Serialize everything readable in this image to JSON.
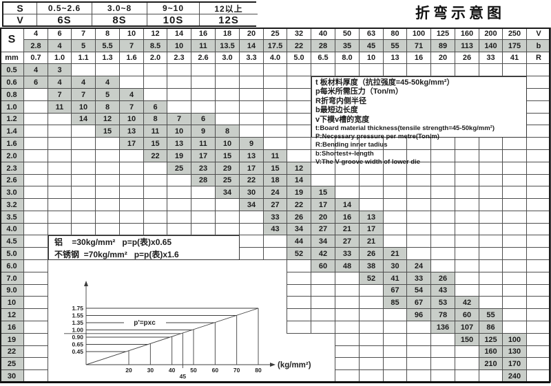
{
  "title": "折弯示意图",
  "colors": {
    "shade": "#c9cec9",
    "grid_line": "#4c4c4c",
    "page_bg": "#ffffff"
  },
  "selector_table": {
    "s_label": "S",
    "v_label": "V",
    "s_ranges": [
      "0.5~2.6",
      "3.0~8",
      "9~10",
      "12以上"
    ],
    "v_values": [
      "6S",
      "8S",
      "10S",
      "12S"
    ]
  },
  "main_table": {
    "corner_label": "S",
    "unit_label": "mm",
    "right_labels": [
      "V",
      "b",
      "R"
    ],
    "v_row": [
      "4",
      "6",
      "7",
      "8",
      "10",
      "12",
      "14",
      "16",
      "18",
      "20",
      "25",
      "32",
      "40",
      "50",
      "63",
      "80",
      "100",
      "125",
      "160",
      "200",
      "250"
    ],
    "b_row": [
      "2.8",
      "4",
      "5",
      "5.5",
      "7",
      "8.5",
      "10",
      "11",
      "13.5",
      "14",
      "17.5",
      "22",
      "28",
      "35",
      "45",
      "55",
      "71",
      "89",
      "113",
      "140",
      "175"
    ],
    "r_row": [
      "0.7",
      "1.0",
      "1.1",
      "1.3",
      "1.6",
      "2.0",
      "2.3",
      "2.6",
      "3.0",
      "3.3",
      "4.0",
      "5.0",
      "6.5",
      "8.0",
      "10",
      "13",
      "16",
      "20",
      "26",
      "33",
      "41"
    ],
    "rows": [
      {
        "s": "0.5",
        "start": 0,
        "v": [
          "4",
          "3"
        ]
      },
      {
        "s": "0.6",
        "start": 0,
        "v": [
          "6",
          "4",
          "4",
          "4"
        ]
      },
      {
        "s": "0.8",
        "start": 1,
        "v": [
          "7",
          "7",
          "5",
          "4"
        ]
      },
      {
        "s": "1.0",
        "start": 1,
        "v": [
          "11",
          "10",
          "8",
          "7",
          "6"
        ]
      },
      {
        "s": "1.2",
        "start": 2,
        "v": [
          "14",
          "12",
          "10",
          "8",
          "7",
          "6"
        ]
      },
      {
        "s": "1.4",
        "start": 3,
        "v": [
          "15",
          "13",
          "11",
          "10",
          "9",
          "8"
        ]
      },
      {
        "s": "1.6",
        "start": 4,
        "v": [
          "17",
          "15",
          "13",
          "11",
          "10",
          "9"
        ]
      },
      {
        "s": "2.0",
        "start": 5,
        "v": [
          "22",
          "19",
          "17",
          "15",
          "13",
          "11"
        ]
      },
      {
        "s": "2.3",
        "start": 6,
        "v": [
          "25",
          "23",
          "29",
          "17",
          "15",
          "12"
        ]
      },
      {
        "s": "2.6",
        "start": 7,
        "v": [
          "28",
          "25",
          "22",
          "18",
          "14"
        ]
      },
      {
        "s": "3.0",
        "start": 8,
        "v": [
          "34",
          "30",
          "24",
          "19",
          "15"
        ]
      },
      {
        "s": "3.2",
        "start": 9,
        "v": [
          "34",
          "27",
          "22",
          "17",
          "14"
        ]
      },
      {
        "s": "3.5",
        "start": 10,
        "v": [
          "33",
          "26",
          "20",
          "16",
          "13"
        ]
      },
      {
        "s": "4.0",
        "start": 10,
        "v": [
          "43",
          "34",
          "27",
          "21",
          "17"
        ]
      },
      {
        "s": "4.5",
        "start": 11,
        "v": [
          "44",
          "34",
          "27",
          "21"
        ]
      },
      {
        "s": "5.0",
        "start": 11,
        "v": [
          "52",
          "42",
          "33",
          "26",
          "21"
        ]
      },
      {
        "s": "6.0",
        "start": 12,
        "v": [
          "60",
          "48",
          "38",
          "30",
          "24"
        ]
      },
      {
        "s": "7.0",
        "start": 14,
        "v": [
          "52",
          "41",
          "33",
          "26"
        ]
      },
      {
        "s": "9.0",
        "start": 15,
        "v": [
          "67",
          "54",
          "43"
        ]
      },
      {
        "s": "10",
        "start": 15,
        "v": [
          "85",
          "67",
          "53",
          "42"
        ]
      },
      {
        "s": "12",
        "start": 16,
        "v": [
          "96",
          "78",
          "60",
          "55"
        ]
      },
      {
        "s": "16",
        "start": 17,
        "v": [
          "136",
          "107",
          "86"
        ]
      },
      {
        "s": "19",
        "start": 18,
        "v": [
          "150",
          "125",
          "100"
        ]
      },
      {
        "s": "22",
        "start": 19,
        "v": [
          "160",
          "130"
        ]
      },
      {
        "s": "25",
        "start": 19,
        "v": [
          "210",
          "170"
        ]
      },
      {
        "s": "30",
        "start": 20,
        "v": [
          "240"
        ]
      }
    ]
  },
  "notes_box": {
    "lines_cn": [
      "t 板材料厚度（抗拉强度=45-50kg/mm²）",
      "p每米所需压力（Ton/m）",
      "R折弯内侧半径",
      "b最短边长度",
      "v下模v槽的宽度"
    ],
    "lines_en": [
      "t:Board material thickness(tensile strength=45-50kg/mm²)",
      "P:Necessary pressure per metre(Ton/m)",
      "R:Bending inner tadius",
      "b:Shortest+-length",
      "V:The V-groove width of lower die"
    ]
  },
  "material_notes": {
    "aluminium": "铝    =30kg/mm²   p=p(表)x0.65",
    "stainless": "不锈钢  =70kg/mm²   p=p(表)x1.6"
  },
  "chart_data": {
    "type": "line",
    "title": "correction factor c vs tensile strength, p'=p×c",
    "xlabel": "(kg/mm²)",
    "ylabel": "",
    "x_ticks": [
      20,
      30,
      40,
      45,
      50,
      60,
      70,
      80
    ],
    "x_tick_below": 45,
    "y_ticks": [
      "1.75",
      "1.55",
      "1.35",
      "1.00",
      "0.90",
      "0.65",
      "0.45"
    ],
    "annotation": "p'=pxc",
    "annotation_level": "1.35",
    "series": [
      {
        "name": "c",
        "x": [
          20,
          30,
          40,
          45,
          50,
          60,
          70,
          80
        ],
        "y": [
          0.45,
          0.65,
          0.9,
          0.95,
          1.0,
          1.35,
          1.55,
          1.75
        ]
      }
    ],
    "legend": false,
    "grid": false
  }
}
